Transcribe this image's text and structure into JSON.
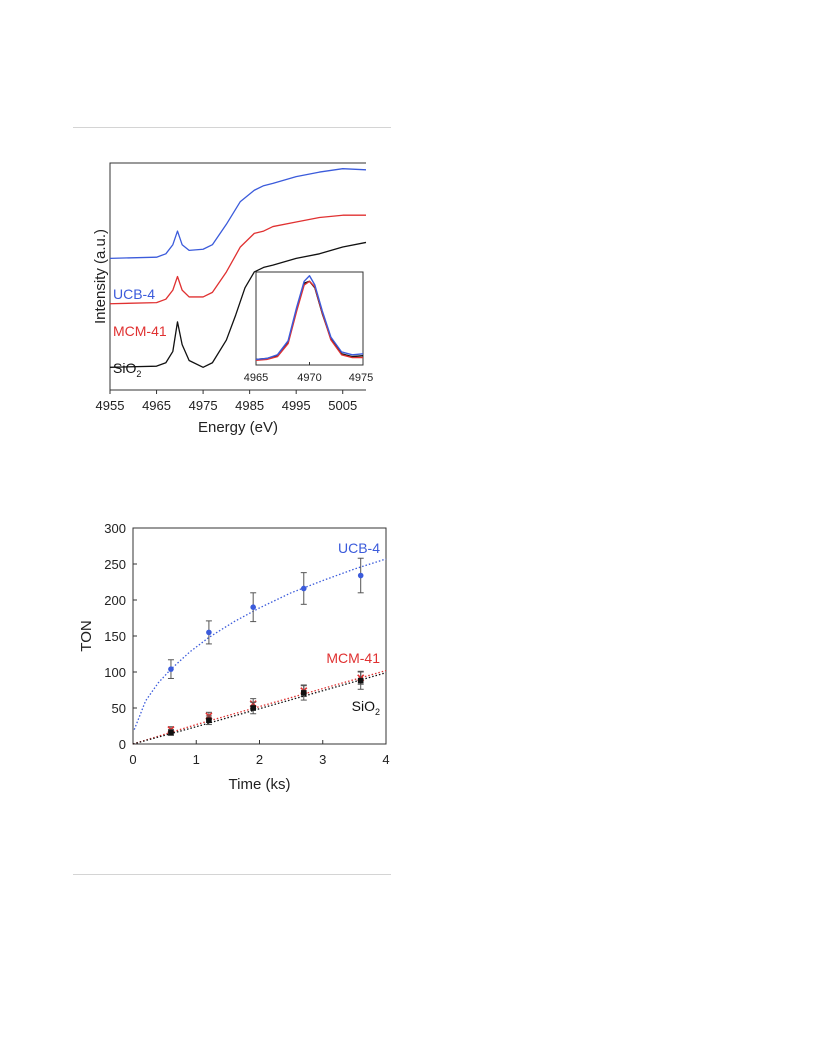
{
  "chart_data": [
    {
      "type": "line",
      "title": "",
      "xlabel": "Energy (eV)",
      "ylabel": "Intensity (a.u.)",
      "xlim": [
        4955,
        5010
      ],
      "ylim": [
        0,
        1
      ],
      "x_ticks": [
        "4955",
        "4965",
        "4975",
        "4985",
        "4995",
        "5005"
      ],
      "legend_placement": "inline-left",
      "series": [
        {
          "name": "UCB-4",
          "color": "#3b5bdb",
          "x": [
            4955,
            4965,
            4967,
            4968.5,
            4969.5,
            4970.5,
            4972,
            4975,
            4977,
            4980,
            4983,
            4986,
            4988,
            4990,
            4995,
            5000,
            5005,
            5010
          ],
          "y": [
            0.58,
            0.585,
            0.6,
            0.64,
            0.7,
            0.64,
            0.615,
            0.62,
            0.64,
            0.73,
            0.83,
            0.88,
            0.9,
            0.91,
            0.94,
            0.96,
            0.975,
            0.97
          ]
        },
        {
          "name": "MCM-41",
          "color": "#e03131",
          "x": [
            4955,
            4965,
            4967,
            4968.5,
            4969.5,
            4970.5,
            4972,
            4975,
            4977,
            4980,
            4983,
            4986,
            4988,
            4990,
            4995,
            5000,
            5005,
            5010
          ],
          "y": [
            0.38,
            0.385,
            0.4,
            0.44,
            0.5,
            0.44,
            0.41,
            0.41,
            0.43,
            0.52,
            0.63,
            0.69,
            0.7,
            0.72,
            0.74,
            0.76,
            0.77,
            0.77
          ]
        },
        {
          "name": "SiO2",
          "color": "#111111",
          "x": [
            4955,
            4965,
            4967,
            4968.5,
            4969.5,
            4970.5,
            4972,
            4975,
            4977,
            4980,
            4982,
            4984,
            4986,
            4988,
            4990,
            4995,
            5000,
            5005,
            5010
          ],
          "y": [
            0.1,
            0.105,
            0.12,
            0.17,
            0.3,
            0.2,
            0.13,
            0.1,
            0.12,
            0.22,
            0.33,
            0.45,
            0.52,
            0.54,
            0.55,
            0.58,
            0.6,
            0.63,
            0.65
          ]
        }
      ],
      "inset": {
        "xlim": [
          4965,
          4975
        ],
        "x_ticks": [
          "4965",
          "4970",
          "4975"
        ],
        "series": [
          {
            "color": "#111111",
            "x": [
              4965,
              4966,
              4967,
              4968,
              4968.8,
              4969.5,
              4970,
              4970.5,
              4971.2,
              4972,
              4973,
              4974,
              4975
            ],
            "y": [
              0.06,
              0.07,
              0.1,
              0.25,
              0.6,
              0.88,
              0.9,
              0.83,
              0.55,
              0.28,
              0.12,
              0.09,
              0.1
            ]
          },
          {
            "color": "#e03131",
            "x": [
              4965,
              4966,
              4967,
              4968,
              4968.8,
              4969.5,
              4970,
              4970.5,
              4971.2,
              4972,
              4973,
              4974,
              4975
            ],
            "y": [
              0.05,
              0.06,
              0.09,
              0.23,
              0.58,
              0.86,
              0.9,
              0.84,
              0.56,
              0.27,
              0.11,
              0.08,
              0.08
            ]
          },
          {
            "color": "#3b5bdb",
            "x": [
              4965,
              4966,
              4967,
              4968,
              4968.8,
              4969.5,
              4970,
              4970.5,
              4971.2,
              4972,
              4973,
              4974,
              4975
            ],
            "y": [
              0.06,
              0.07,
              0.11,
              0.26,
              0.62,
              0.9,
              0.96,
              0.86,
              0.58,
              0.3,
              0.14,
              0.11,
              0.12
            ]
          }
        ]
      }
    },
    {
      "type": "scatter",
      "title": "",
      "xlabel": "Time (ks)",
      "ylabel": "TON",
      "xlim": [
        0,
        4
      ],
      "ylim": [
        0,
        300
      ],
      "x_ticks": [
        "0",
        "1",
        "2",
        "3",
        "4"
      ],
      "y_ticks": [
        "0",
        "50",
        "100",
        "150",
        "200",
        "250",
        "300"
      ],
      "legend_placement": "inline-right",
      "series": [
        {
          "name": "UCB-4",
          "color": "#3b5bdb",
          "marker": "circle",
          "x": [
            0.6,
            1.2,
            1.9,
            2.7,
            3.6
          ],
          "y": [
            104,
            155,
            190,
            216,
            234
          ],
          "err": [
            13,
            16,
            20,
            22,
            24
          ],
          "fit": {
            "x": [
              0.02,
              0.2,
              0.4,
              0.6,
              0.9,
              1.2,
              1.6,
              2.0,
              2.5,
              3.0,
              3.5,
              4.0
            ],
            "y": [
              20,
              60,
              85,
              104,
              128,
              148,
              170,
              189,
              210,
              227,
              243,
              257
            ]
          }
        },
        {
          "name": "MCM-41",
          "color": "#e03131",
          "marker": "cross",
          "x": [
            0.6,
            1.2,
            1.9,
            2.7,
            3.6
          ],
          "y": [
            20,
            39,
            56,
            74,
            92
          ],
          "err": [
            4,
            5,
            7,
            8,
            9
          ],
          "fit": {
            "x": [
              0,
              1,
              2,
              3,
              4
            ],
            "y": [
              0,
              27,
              52,
              77,
              102
            ]
          }
        },
        {
          "name": "SiO2",
          "color": "#111111",
          "marker": "square",
          "x": [
            0.6,
            1.2,
            1.9,
            2.7,
            3.6
          ],
          "y": [
            16,
            33,
            50,
            71,
            88
          ],
          "err": [
            4,
            6,
            8,
            10,
            12
          ],
          "fit": {
            "x": [
              0,
              1,
              2,
              3,
              4
            ],
            "y": [
              0,
              24,
              49,
              74,
              99
            ]
          }
        }
      ]
    }
  ]
}
